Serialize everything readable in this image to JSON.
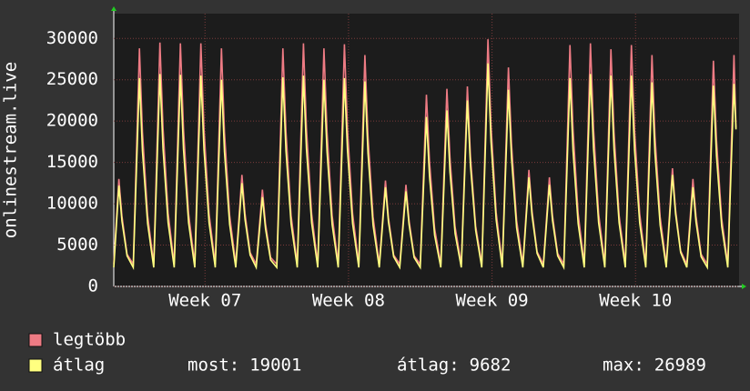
{
  "chart_data": {
    "type": "line",
    "y_label": "onlinestream.live",
    "x": [
      0,
      0.25,
      0.4,
      0.65,
      0.95,
      1.25,
      1.4,
      1.65,
      1.95,
      2.25,
      2.4,
      2.65,
      2.95,
      3.25,
      3.4,
      3.65,
      3.95,
      4.25,
      4.4,
      4.65,
      4.95,
      5.25,
      5.4,
      5.65,
      5.95,
      6.25,
      6.4,
      6.65,
      6.95,
      7.25,
      7.4,
      7.65,
      7.95,
      8.25,
      8.4,
      8.65,
      8.95,
      9.25,
      9.4,
      9.65,
      9.95,
      10.25,
      10.4,
      10.65,
      10.95,
      11.25,
      11.4,
      11.65,
      11.95,
      12.25,
      12.4,
      12.65,
      12.95,
      13.25,
      13.4,
      13.65,
      13.95,
      14.25,
      14.4,
      14.65,
      14.95,
      15.25,
      15.4,
      15.65,
      15.95,
      16.25,
      16.4,
      16.65,
      16.95,
      17.25,
      17.4,
      17.65,
      17.95,
      18.25,
      18.4,
      18.65,
      18.95,
      19.25,
      19.4,
      19.65,
      19.95,
      20.25,
      20.4,
      20.65,
      20.95,
      21.25,
      21.4,
      21.65,
      21.95,
      22.25,
      22.4,
      22.65,
      22.95,
      23.25,
      23.4,
      23.65,
      23.95,
      24.25,
      24.4,
      24.65,
      24.95,
      25.25,
      25.4,
      25.65,
      25.95,
      26.25,
      26.4,
      26.65,
      26.95,
      27.25,
      27.4,
      27.65,
      27.95,
      28.25,
      28.4,
      28.65,
      28.95,
      29.25,
      29.4,
      29.65,
      29.95,
      30.25,
      30.35
    ],
    "series": [
      {
        "name": "legtöbb",
        "color": "#ee7b84",
        "values": [
          2700,
          13000,
          8500,
          3900,
          2700,
          28800,
          18700,
          8600,
          2700,
          29500,
          19200,
          8900,
          2700,
          29400,
          19100,
          8800,
          2700,
          29400,
          19100,
          8800,
          2700,
          28800,
          18700,
          8600,
          2700,
          13500,
          8800,
          4100,
          2700,
          11700,
          7600,
          3500,
          2700,
          28800,
          18700,
          8600,
          2700,
          29400,
          19100,
          8800,
          2700,
          28800,
          18700,
          8600,
          2700,
          29300,
          19000,
          8800,
          2700,
          28000,
          18200,
          8400,
          2700,
          12800,
          8300,
          3800,
          2700,
          12300,
          8000,
          3700,
          2700,
          23200,
          15100,
          7000,
          2700,
          23900,
          15500,
          7200,
          2700,
          24200,
          15700,
          7300,
          2700,
          29900,
          19400,
          9000,
          2700,
          26500,
          17200,
          8000,
          2700,
          14100,
          9200,
          4200,
          2700,
          13200,
          8600,
          4000,
          2700,
          29200,
          19000,
          8800,
          2700,
          29400,
          19100,
          8800,
          2700,
          28700,
          18700,
          8600,
          2700,
          29200,
          19000,
          8800,
          2700,
          28000,
          18200,
          8400,
          2700,
          14300,
          9300,
          4300,
          2700,
          13000,
          8500,
          3900,
          2700,
          27300,
          17700,
          8200,
          2700,
          28000,
          19200
        ]
      },
      {
        "name": "átlag",
        "color": "#ffff80",
        "values": [
          2300,
          12200,
          7900,
          3700,
          2300,
          25200,
          16400,
          7600,
          2300,
          25700,
          16700,
          7700,
          2300,
          25600,
          16600,
          7700,
          2300,
          25500,
          16600,
          7700,
          2300,
          25000,
          16300,
          7500,
          2300,
          12500,
          8100,
          3800,
          2300,
          10800,
          7000,
          3200,
          2300,
          25300,
          16400,
          7600,
          2300,
          25500,
          16600,
          7700,
          2300,
          25000,
          16300,
          7500,
          2300,
          25200,
          16400,
          7600,
          2300,
          24800,
          16100,
          7400,
          2300,
          12000,
          7800,
          3600,
          2300,
          11500,
          7500,
          3500,
          2300,
          20500,
          13300,
          6200,
          2300,
          21300,
          13800,
          6400,
          2300,
          22500,
          14600,
          6800,
          2300,
          26989,
          17500,
          8100,
          2300,
          23800,
          15500,
          7100,
          2300,
          13200,
          8600,
          4000,
          2300,
          12300,
          8000,
          3700,
          2300,
          25200,
          16400,
          7600,
          2300,
          25700,
          16700,
          7700,
          2300,
          25500,
          16600,
          7700,
          2300,
          25500,
          16600,
          7700,
          2300,
          24700,
          16100,
          7400,
          2300,
          13500,
          8800,
          4100,
          2300,
          12000,
          7800,
          3600,
          2300,
          24300,
          15800,
          7300,
          2300,
          24500,
          19001
        ]
      }
    ],
    "xlim": [
      0,
      30.5
    ],
    "xticks": [
      {
        "value": 4.45,
        "label": "Week 07"
      },
      {
        "value": 11.45,
        "label": "Week 08"
      },
      {
        "value": 18.45,
        "label": "Week 09"
      },
      {
        "value": 25.45,
        "label": "Week 10"
      }
    ],
    "ylim": [
      0,
      33000
    ],
    "yticks": [
      0,
      5000,
      10000,
      15000,
      20000,
      25000,
      30000
    ],
    "grid": true,
    "stats": [
      {
        "label": "most:",
        "value": 19001
      },
      {
        "label": "átlag:",
        "value": 9682
      },
      {
        "label": "max:",
        "value": 26989
      }
    ]
  }
}
